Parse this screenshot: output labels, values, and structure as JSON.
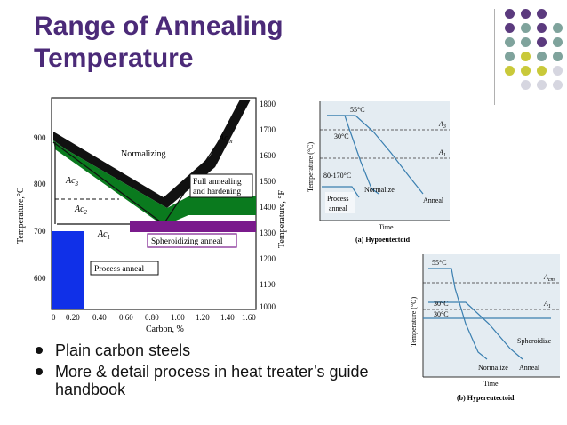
{
  "slide": {
    "title_line1": "Range of Annealing",
    "title_line2": "Temperature",
    "bullets": [
      "Plain carbon steels",
      "More & detail process in heat treater’s guide handbook"
    ],
    "colors": {
      "title": "#4b2a78",
      "dot_purple": "#5b3a7e",
      "dot_teal": "#7fa39c",
      "dot_yellow": "#c9c93a",
      "dot_gray": "#d6d6e0"
    }
  },
  "phase_diagram": {
    "y_label_c": "Temperature,°C",
    "y_label_f": "Temperature, °F",
    "x_label": "Carbon, %",
    "c_ticks": [
      "900",
      "800",
      "700",
      "600"
    ],
    "f_ticks": [
      "1800",
      "1700",
      "1600",
      "1500",
      "1400",
      "1300",
      "1200",
      "1100",
      "1000"
    ],
    "x_ticks": [
      "0",
      "0.20",
      "0.40",
      "0.60",
      "0.80",
      "1.00",
      "1.20",
      "1.40",
      "1.60"
    ],
    "labels": {
      "normalizing": "Normalizing",
      "acm": "Ac",
      "acm_sub": "m",
      "ac3": "Ac",
      "ac3_sub": "3",
      "ac2": "Ac",
      "ac2_sub": "2",
      "ac1": "Ac",
      "ac1_sub": "1",
      "full_annealing_1": "Full annealing",
      "full_annealing_2": "and hardening",
      "spheroidizing": "Spheroidizing anneal",
      "process_anneal": "Process anneal"
    },
    "colors": {
      "normalizing": "#111111",
      "full": "#0a7a1e",
      "spheroidizing": "#7a1a8c",
      "process": "#1030e8"
    }
  },
  "hypo": {
    "y_label": "Temperature (°C)",
    "x_label": "Time",
    "caption": "(a) Hypoeutectoid",
    "lines": {
      "a3": "A",
      "a3_sub": "3",
      "a1": "A",
      "a1_sub": "1"
    },
    "deltas": {
      "top": "55°C",
      "mid": "30°C",
      "low": "80-170°C"
    },
    "labels": {
      "normalize": "Normalize",
      "anneal": "Anneal",
      "process_1": "Process",
      "process_2": "anneal"
    }
  },
  "hyper": {
    "y_label": "Temperature (°C)",
    "x_label": "Time",
    "caption": "(b) Hypereutectoid",
    "lines": {
      "acm": "A",
      "acm_sub": "cm",
      "a1": "A",
      "a1_sub": "1"
    },
    "deltas": {
      "top": "55°C",
      "mid1": "30°C",
      "mid2": "30°C"
    },
    "labels": {
      "spheroidize": "Spheroidize",
      "normalize": "Normalize",
      "anneal": "Anneal"
    }
  }
}
